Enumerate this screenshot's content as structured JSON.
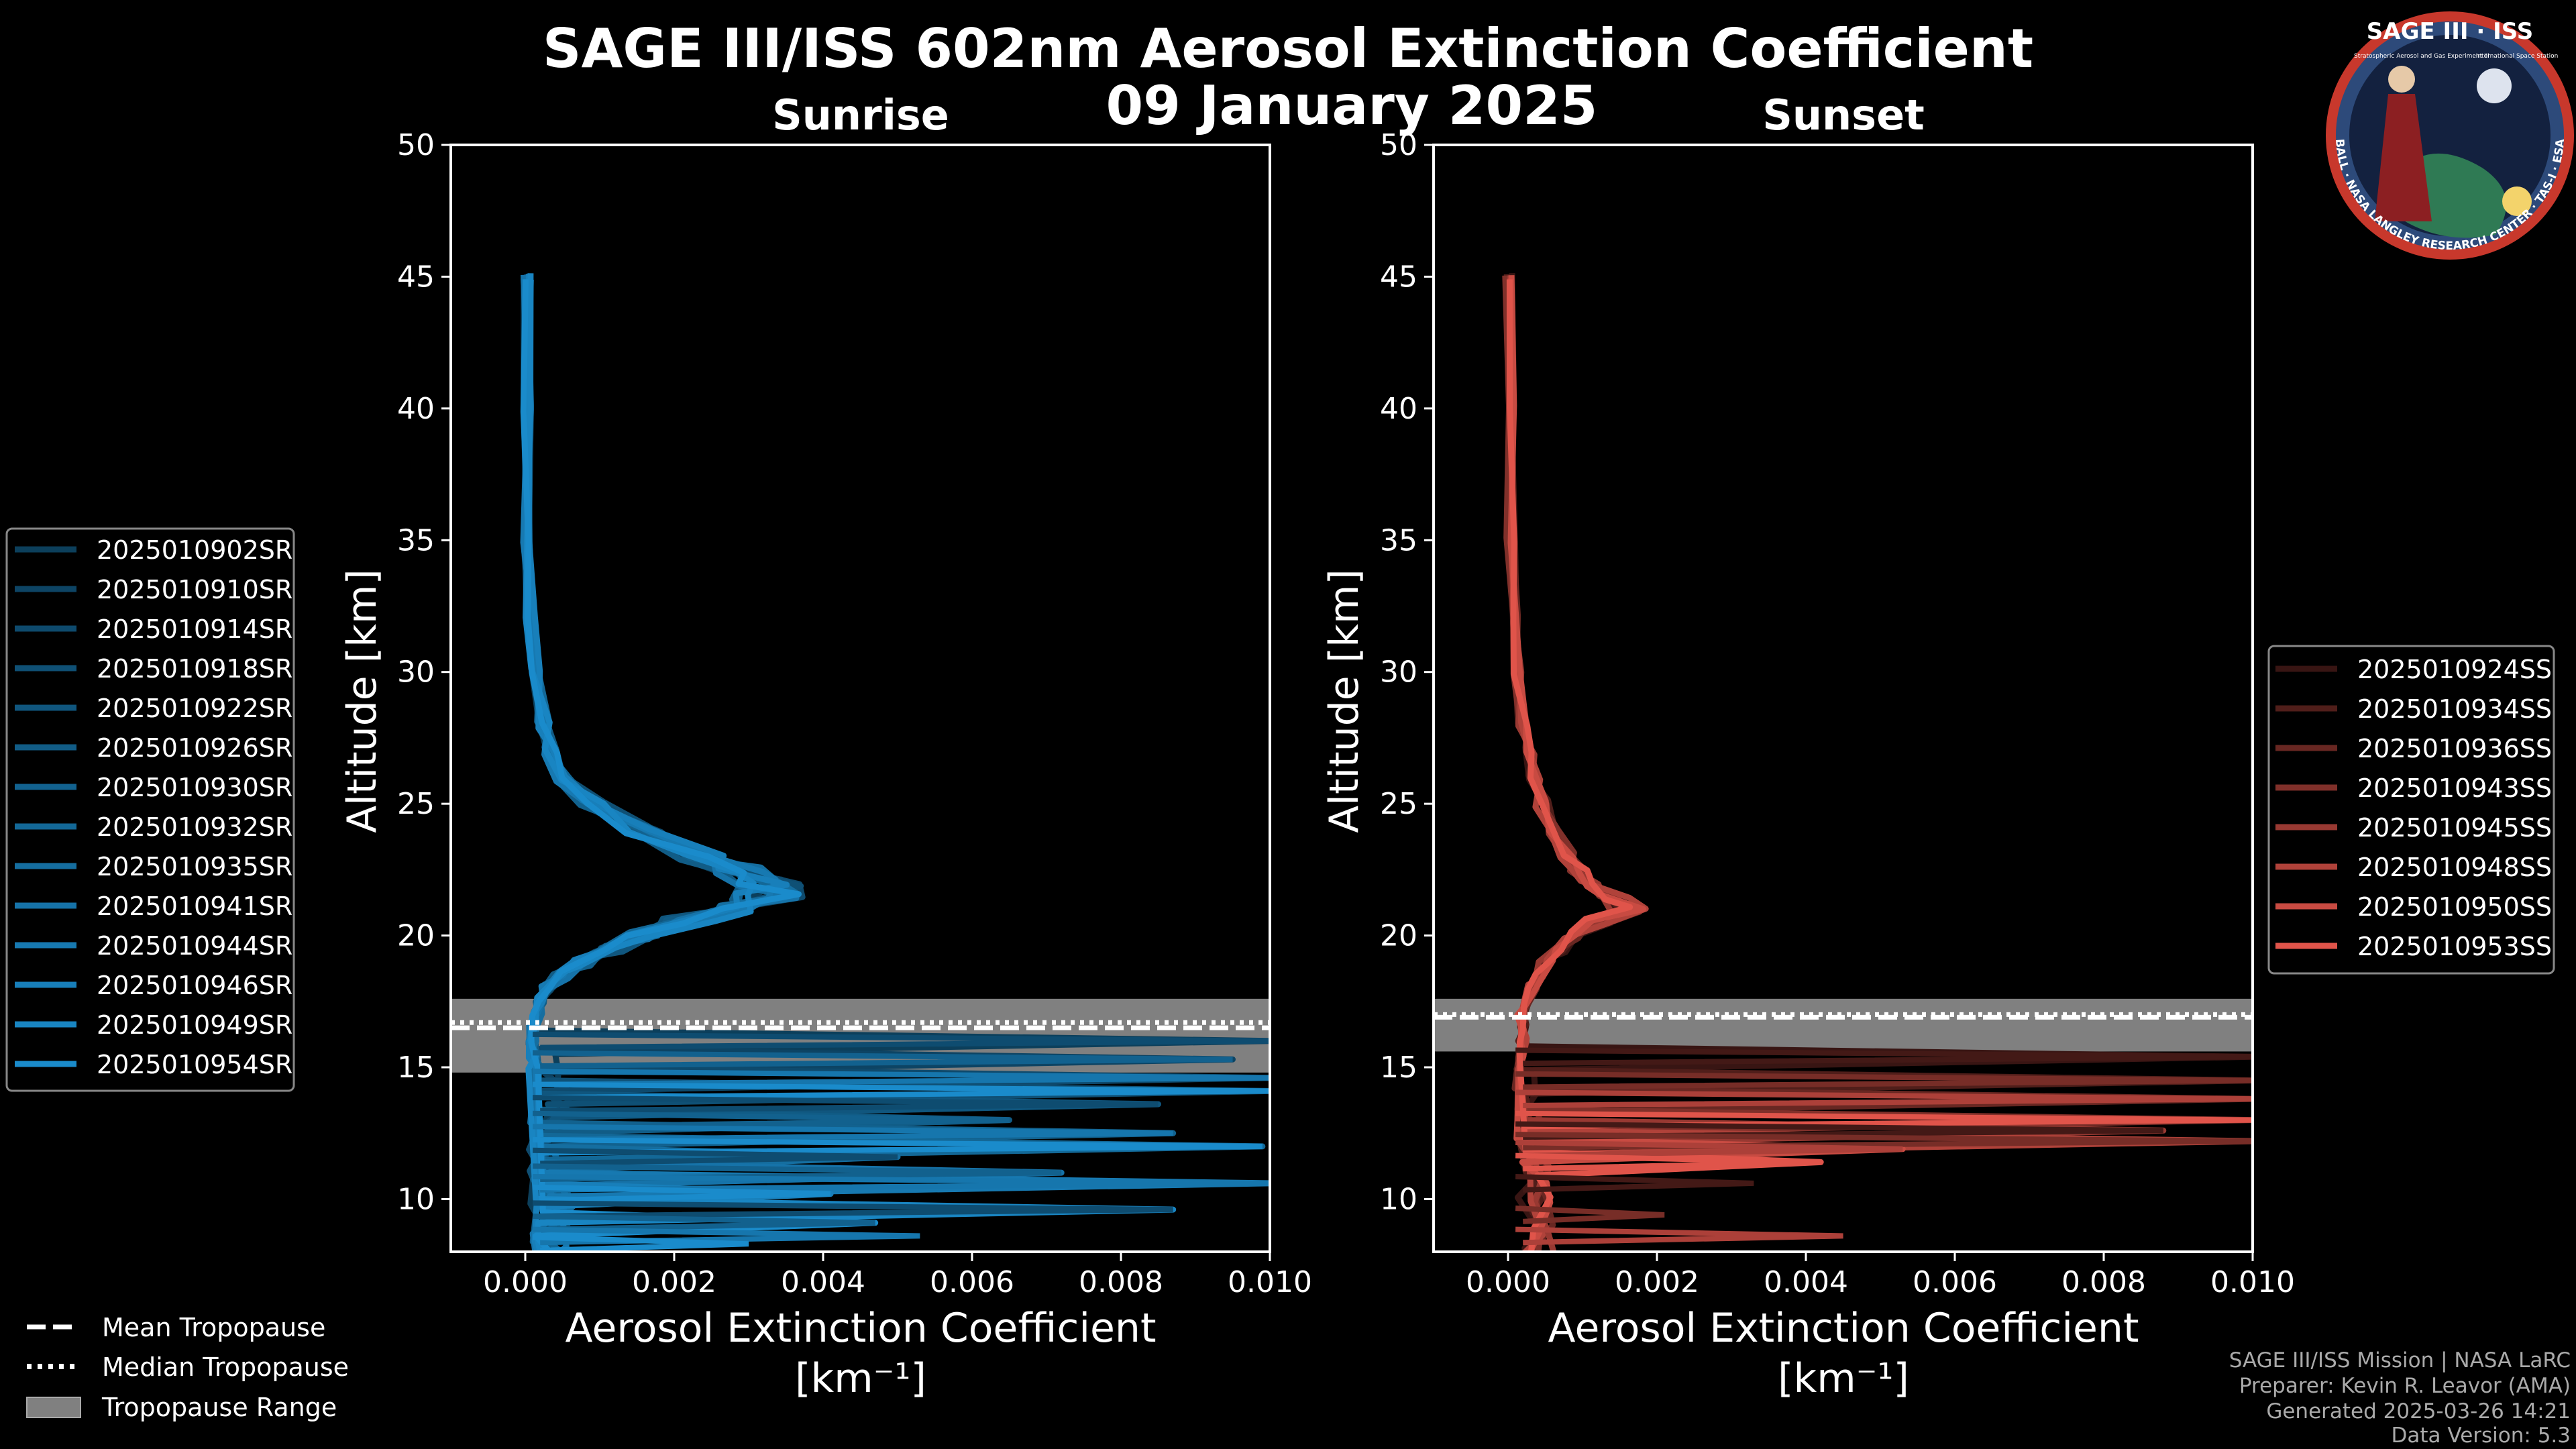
{
  "title": "SAGE III/ISS 602nm Aerosol Extinction Coefficient",
  "date": "09 January 2025",
  "logo": {
    "text": "SAGE III · ISS",
    "ring_text": "BALL · NASA LANGLEY RESEARCH CENTER · TAS-I · ESA",
    "tagline": "Stratospheric Aerosol and Gas Experiment III",
    "iss_label": "International Space Station"
  },
  "legend_tropopause": [
    {
      "label": "Mean Tropopause",
      "style": "dashed"
    },
    {
      "label": "Median Tropopause",
      "style": "dotted"
    },
    {
      "label": "Tropopause Range",
      "style": "patch"
    }
  ],
  "footer": [
    "SAGE III/ISS Mission | NASA LaRC",
    "Preparer: Kevin R. Leavor (AMA)",
    "Generated 2025-03-26 14:21",
    "Data Version: 5.3"
  ],
  "colors": {
    "sunrise": "#1a8bcb",
    "sunset": "#e0544a",
    "tropopause_range": "#808080"
  },
  "chart_data": [
    {
      "type": "line",
      "panel": "sunrise",
      "title": "Sunrise",
      "xlabel": "Aerosol Extinction Coefficient",
      "xunits": "[km⁻¹]",
      "ylabel": "Altitude [km]",
      "xlim": [
        -0.001,
        0.01
      ],
      "ylim": [
        8,
        50
      ],
      "xticks": [
        "0.000",
        "0.002",
        "0.004",
        "0.006",
        "0.008",
        "0.010"
      ],
      "xtick_values": [
        0,
        0.002,
        0.004,
        0.006,
        0.008,
        0.01
      ],
      "yticks": [
        10,
        15,
        20,
        25,
        30,
        35,
        40,
        45,
        50
      ],
      "tropopause": {
        "mean": 16.5,
        "median": 16.7,
        "range": [
          14.8,
          17.6
        ]
      },
      "legend": [
        "2025010902SR",
        "2025010910SR",
        "2025010914SR",
        "2025010918SR",
        "2025010922SR",
        "2025010926SR",
        "2025010930SR",
        "2025010932SR",
        "2025010935SR",
        "2025010941SR",
        "2025010944SR",
        "2025010946SR",
        "2025010949SR",
        "2025010954SR"
      ],
      "profile": {
        "altitude": [
          45,
          40,
          35,
          32,
          30,
          28,
          27,
          26,
          25,
          24,
          23,
          22.5,
          22,
          21.5,
          21,
          20.5,
          20,
          19.5,
          19,
          18.5,
          18,
          17.5,
          17,
          16.5,
          16,
          15.5,
          15
        ],
        "extinction": [
          2e-05,
          2e-05,
          3e-05,
          7e-05,
          0.00013,
          0.00025,
          0.00035,
          0.0005,
          0.0009,
          0.0016,
          0.0024,
          0.0029,
          0.0033,
          0.0033,
          0.0029,
          0.0022,
          0.0016,
          0.0011,
          0.0008,
          0.0005,
          0.0003,
          0.0002,
          0.00015,
          0.0001,
          0.0001,
          0.0001,
          0.00012
        ]
      },
      "low_alt_spikes": [
        {
          "alt": 16.0,
          "ext": 0.01
        },
        {
          "alt": 15.3,
          "ext": 0.0095
        },
        {
          "alt": 14.6,
          "ext": 0.01
        },
        {
          "alt": 14.1,
          "ext": 0.01
        },
        {
          "alt": 13.6,
          "ext": 0.0085
        },
        {
          "alt": 13.0,
          "ext": 0.0065
        },
        {
          "alt": 12.5,
          "ext": 0.0087
        },
        {
          "alt": 12.0,
          "ext": 0.0099
        },
        {
          "alt": 11.6,
          "ext": 0.005
        },
        {
          "alt": 11.0,
          "ext": 0.0072
        },
        {
          "alt": 10.6,
          "ext": 0.01
        },
        {
          "alt": 10.2,
          "ext": 0.0041
        },
        {
          "alt": 9.6,
          "ext": 0.0087
        },
        {
          "alt": 9.1,
          "ext": 0.0047
        },
        {
          "alt": 8.6,
          "ext": 0.0053
        },
        {
          "alt": 8.3,
          "ext": 0.003
        }
      ]
    },
    {
      "type": "line",
      "panel": "sunset",
      "title": "Sunset",
      "xlabel": "Aerosol Extinction Coefficient",
      "xunits": "[km⁻¹]",
      "ylabel": "Altitude [km]",
      "xlim": [
        -0.001,
        0.01
      ],
      "ylim": [
        8,
        50
      ],
      "xticks": [
        "0.000",
        "0.002",
        "0.004",
        "0.006",
        "0.008",
        "0.010"
      ],
      "xtick_values": [
        0,
        0.002,
        0.004,
        0.006,
        0.008,
        0.01
      ],
      "yticks": [
        10,
        15,
        20,
        25,
        30,
        35,
        40,
        45,
        50
      ],
      "tropopause": {
        "mean": 16.9,
        "median": 17.0,
        "range": [
          15.6,
          17.6
        ]
      },
      "legend": [
        "2025010924SS",
        "2025010934SS",
        "2025010936SS",
        "2025010943SS",
        "2025010945SS",
        "2025010948SS",
        "2025010950SS",
        "2025010953SS"
      ],
      "profile": {
        "altitude": [
          45,
          40,
          35,
          32,
          30,
          28,
          27,
          26,
          25,
          24,
          23,
          22.5,
          22,
          21.5,
          21,
          20.5,
          20,
          19.5,
          19,
          18.5,
          18,
          17.5,
          17,
          16.5,
          16,
          15.5,
          15
        ],
        "extinction": [
          2e-05,
          3e-05,
          4e-05,
          8e-05,
          0.00012,
          0.0002,
          0.00028,
          0.00035,
          0.00045,
          0.0006,
          0.0008,
          0.001,
          0.0011,
          0.0014,
          0.0016,
          0.0012,
          0.0009,
          0.0007,
          0.0005,
          0.0004,
          0.0003,
          0.00025,
          0.0002,
          0.0002,
          0.0002,
          0.0002,
          0.00015
        ]
      },
      "low_alt_spikes": [
        {
          "alt": 15.4,
          "ext": 0.01
        },
        {
          "alt": 14.5,
          "ext": 0.01
        },
        {
          "alt": 13.8,
          "ext": 0.01
        },
        {
          "alt": 13.0,
          "ext": 0.01
        },
        {
          "alt": 12.6,
          "ext": 0.0088
        },
        {
          "alt": 12.2,
          "ext": 0.01
        },
        {
          "alt": 11.9,
          "ext": 0.0053
        },
        {
          "alt": 11.4,
          "ext": 0.0042
        },
        {
          "alt": 10.6,
          "ext": 0.0033
        },
        {
          "alt": 9.4,
          "ext": 0.0021
        },
        {
          "alt": 8.6,
          "ext": 0.0045
        }
      ]
    }
  ]
}
